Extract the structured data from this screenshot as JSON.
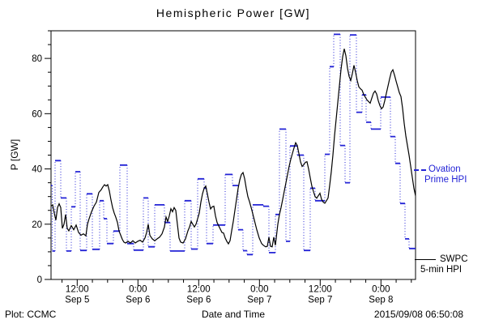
{
  "chart_data": {
    "type": "line",
    "title": "Hemispheric Power [GW]",
    "xlabel": "Date and Time",
    "ylabel": "P [GW]",
    "footer_left": "Plot: CCMC",
    "footer_right": "2015/09/08 06:50:08",
    "x_unit": "hours since 2015-09-05 06:50 UT (window ends 2015-09-08 06:50)",
    "x_range": [
      0,
      72
    ],
    "y_range": [
      0,
      90
    ],
    "y_major_ticks": [
      0,
      20,
      40,
      60,
      80
    ],
    "y_minor_step": 5,
    "x_major_ticks": [
      {
        "h": 5.17,
        "time": "12:00",
        "date": "Sep 5"
      },
      {
        "h": 17.17,
        "time": "0:00",
        "date": "Sep 6"
      },
      {
        "h": 29.17,
        "time": "12:00",
        "date": "Sep 6"
      },
      {
        "h": 41.17,
        "time": "0:00",
        "date": "Sep 7"
      },
      {
        "h": 53.17,
        "time": "12:00",
        "date": "Sep 7"
      },
      {
        "h": 65.17,
        "time": "0:00",
        "date": "Sep 8"
      }
    ],
    "x_minor": {
      "first": 2.17,
      "step": 3
    },
    "grid": false,
    "legend_position": "right-outside",
    "series": [
      {
        "name": "Ovation Prime HPI",
        "legend_line1": "Ovation",
        "legend_line2": "Prime HPI",
        "color": "#2323d6",
        "style": "steps: solid horizontal segments, dotted vertical connectors",
        "steps_h_gw": [
          [
            0,
            34
          ],
          [
            0.24,
            10.3
          ],
          [
            0.8,
            43
          ],
          [
            1.92,
            29.5
          ],
          [
            3.04,
            10.3
          ],
          [
            4,
            26.3
          ],
          [
            4.8,
            39
          ],
          [
            5.76,
            10.5
          ],
          [
            7.04,
            31
          ],
          [
            8.16,
            10.9
          ],
          [
            9.6,
            28.5
          ],
          [
            10.4,
            22
          ],
          [
            11.04,
            13
          ],
          [
            12.32,
            17.5
          ],
          [
            13.6,
            41.4
          ],
          [
            15.04,
            13
          ],
          [
            16.32,
            10.6
          ],
          [
            18.24,
            29.5
          ],
          [
            19.2,
            11.8
          ],
          [
            20.48,
            27
          ],
          [
            22.4,
            20.6
          ],
          [
            23.52,
            10.3
          ],
          [
            26.4,
            28.5
          ],
          [
            27.68,
            11
          ],
          [
            28.96,
            36.4
          ],
          [
            30.24,
            33
          ],
          [
            30.72,
            13
          ],
          [
            32,
            19.7
          ],
          [
            34.4,
            38
          ],
          [
            35.84,
            34
          ],
          [
            36.96,
            18
          ],
          [
            37.92,
            10.4
          ],
          [
            38.72,
            9
          ],
          [
            39.84,
            27
          ],
          [
            41.92,
            26.5
          ],
          [
            43.04,
            9.7
          ],
          [
            44.32,
            23.5
          ],
          [
            45.12,
            54.4
          ],
          [
            46.4,
            13.8
          ],
          [
            47.2,
            48.3
          ],
          [
            48.64,
            45
          ],
          [
            49.92,
            10.5
          ],
          [
            51.2,
            33
          ],
          [
            52.16,
            28.5
          ],
          [
            54.08,
            45.3
          ],
          [
            55.04,
            77
          ],
          [
            55.84,
            88.7
          ],
          [
            57.12,
            48.5
          ],
          [
            58.08,
            35
          ],
          [
            59.04,
            88.5
          ],
          [
            60.32,
            60.5
          ],
          [
            61.44,
            66.8
          ],
          [
            62.24,
            56.9
          ],
          [
            63.2,
            54.4
          ],
          [
            65.12,
            66
          ],
          [
            67.04,
            51.7
          ],
          [
            68,
            42
          ],
          [
            68.96,
            27.5
          ],
          [
            69.92,
            14.7
          ],
          [
            70.72,
            11.2
          ]
        ]
      },
      {
        "name": "SWPC 5-min HPI",
        "legend_line1": "SWPC",
        "legend_line2": "5-min HPI",
        "color": "#000000",
        "style": "solid line",
        "points_h_gw": [
          [
            0,
            26.5
          ],
          [
            0.32,
            27
          ],
          [
            0.64,
            24
          ],
          [
            0.96,
            21.5
          ],
          [
            1.28,
            26
          ],
          [
            1.6,
            27.4
          ],
          [
            1.92,
            26
          ],
          [
            2.24,
            18.5
          ],
          [
            2.56,
            20
          ],
          [
            2.88,
            23.5
          ],
          [
            3.2,
            18.5
          ],
          [
            3.52,
            17.6
          ],
          [
            4,
            19.5
          ],
          [
            4.48,
            18
          ],
          [
            4.96,
            19.7
          ],
          [
            5.44,
            17
          ],
          [
            5.92,
            16
          ],
          [
            6.4,
            16.5
          ],
          [
            6.88,
            15.8
          ],
          [
            7.2,
            20
          ],
          [
            7.52,
            22
          ],
          [
            8,
            24.5
          ],
          [
            8.48,
            26.5
          ],
          [
            8.96,
            28
          ],
          [
            9.44,
            31.5
          ],
          [
            9.92,
            32.5
          ],
          [
            10.24,
            33.5
          ],
          [
            10.56,
            34.3
          ],
          [
            10.88,
            33.8
          ],
          [
            11.2,
            34.3
          ],
          [
            11.52,
            32
          ],
          [
            11.84,
            28.8
          ],
          [
            12.16,
            26
          ],
          [
            12.48,
            24
          ],
          [
            12.8,
            22.5
          ],
          [
            13.12,
            20.6
          ],
          [
            13.44,
            17.5
          ],
          [
            13.76,
            16
          ],
          [
            14.08,
            14.5
          ],
          [
            14.4,
            13.5
          ],
          [
            14.72,
            13.2
          ],
          [
            15.2,
            13.8
          ],
          [
            15.68,
            13.2
          ],
          [
            16.16,
            14
          ],
          [
            16.64,
            13.2
          ],
          [
            17.12,
            13.8
          ],
          [
            17.6,
            14.2
          ],
          [
            18.08,
            13.5
          ],
          [
            18.56,
            15
          ],
          [
            18.88,
            17
          ],
          [
            19.2,
            20
          ],
          [
            19.52,
            16
          ],
          [
            20,
            14.7
          ],
          [
            20.48,
            14
          ],
          [
            20.96,
            14.7
          ],
          [
            21.44,
            15.3
          ],
          [
            21.92,
            16.5
          ],
          [
            22.4,
            19
          ],
          [
            22.72,
            22.6
          ],
          [
            23.04,
            21
          ],
          [
            23.36,
            23
          ],
          [
            23.68,
            25.6
          ],
          [
            24,
            24.5
          ],
          [
            24.32,
            26
          ],
          [
            24.64,
            25
          ],
          [
            24.96,
            20
          ],
          [
            25.28,
            15
          ],
          [
            25.6,
            13.5
          ],
          [
            26.08,
            13.2
          ],
          [
            26.56,
            14.7
          ],
          [
            27.04,
            17.6
          ],
          [
            27.36,
            19
          ],
          [
            27.68,
            21
          ],
          [
            28,
            20
          ],
          [
            28.32,
            19
          ],
          [
            28.64,
            20
          ],
          [
            28.96,
            22
          ],
          [
            29.28,
            24
          ],
          [
            29.6,
            28
          ],
          [
            29.92,
            31
          ],
          [
            30.24,
            33
          ],
          [
            30.56,
            33.8
          ],
          [
            30.88,
            31
          ],
          [
            31.2,
            28
          ],
          [
            31.52,
            25.5
          ],
          [
            31.84,
            26.3
          ],
          [
            32.16,
            26.5
          ],
          [
            32.48,
            23
          ],
          [
            32.8,
            20.6
          ],
          [
            33.12,
            19.4
          ],
          [
            33.44,
            18.2
          ],
          [
            33.76,
            17
          ],
          [
            34.08,
            16.8
          ],
          [
            34.4,
            15
          ],
          [
            34.72,
            13.8
          ],
          [
            35.04,
            12.9
          ],
          [
            35.36,
            14
          ],
          [
            35.68,
            17.6
          ],
          [
            36,
            21
          ],
          [
            36.32,
            25
          ],
          [
            36.64,
            29
          ],
          [
            36.96,
            33
          ],
          [
            37.28,
            36
          ],
          [
            37.6,
            38
          ],
          [
            37.92,
            38.7
          ],
          [
            38.24,
            36.5
          ],
          [
            38.56,
            33
          ],
          [
            38.88,
            30
          ],
          [
            39.2,
            28.2
          ],
          [
            39.68,
            25
          ],
          [
            40.16,
            21.5
          ],
          [
            40.64,
            18
          ],
          [
            41.12,
            15
          ],
          [
            41.6,
            13
          ],
          [
            41.92,
            12.4
          ],
          [
            42.4,
            11.8
          ],
          [
            42.72,
            12
          ],
          [
            43.04,
            15.3
          ],
          [
            43.36,
            12
          ],
          [
            43.68,
            11.8
          ],
          [
            44,
            15.3
          ],
          [
            44.32,
            12.4
          ],
          [
            44.8,
            20
          ],
          [
            45.12,
            23.5
          ],
          [
            45.44,
            26
          ],
          [
            45.76,
            29
          ],
          [
            46.08,
            32
          ],
          [
            46.4,
            35
          ],
          [
            46.72,
            38
          ],
          [
            47.04,
            41
          ],
          [
            47.36,
            43.5
          ],
          [
            47.68,
            45.6
          ],
          [
            48,
            47.6
          ],
          [
            48.32,
            49.5
          ],
          [
            48.64,
            48.5
          ],
          [
            48.96,
            45.6
          ],
          [
            49.28,
            42.6
          ],
          [
            49.6,
            40.9
          ],
          [
            49.92,
            41.5
          ],
          [
            50.24,
            42.4
          ],
          [
            50.56,
            42.6
          ],
          [
            50.88,
            40
          ],
          [
            51.2,
            36.8
          ],
          [
            51.52,
            33.8
          ],
          [
            51.84,
            31.8
          ],
          [
            52.16,
            30
          ],
          [
            52.48,
            29.4
          ],
          [
            52.8,
            30.3
          ],
          [
            53.12,
            31.2
          ],
          [
            53.44,
            29
          ],
          [
            53.76,
            28
          ],
          [
            54.08,
            27.6
          ],
          [
            54.4,
            28.5
          ],
          [
            54.72,
            29.5
          ],
          [
            55.04,
            34
          ],
          [
            55.36,
            39
          ],
          [
            55.68,
            45
          ],
          [
            56,
            52
          ],
          [
            56.32,
            58
          ],
          [
            56.64,
            64
          ],
          [
            56.96,
            70
          ],
          [
            57.28,
            76
          ],
          [
            57.6,
            80.5
          ],
          [
            57.92,
            83.5
          ],
          [
            58.24,
            81
          ],
          [
            58.56,
            76.5
          ],
          [
            58.88,
            73.5
          ],
          [
            59.2,
            72
          ],
          [
            59.52,
            74.5
          ],
          [
            59.84,
            77.5
          ],
          [
            60.16,
            75
          ],
          [
            60.48,
            72
          ],
          [
            60.8,
            69.7
          ],
          [
            61.12,
            69
          ],
          [
            61.44,
            68.5
          ],
          [
            61.76,
            67
          ],
          [
            62.08,
            66
          ],
          [
            62.4,
            65
          ],
          [
            62.72,
            64.4
          ],
          [
            63.04,
            63.8
          ],
          [
            63.36,
            65.6
          ],
          [
            63.68,
            67.4
          ],
          [
            64,
            68.2
          ],
          [
            64.32,
            67.1
          ],
          [
            64.64,
            64.7
          ],
          [
            64.96,
            62.9
          ],
          [
            65.28,
            61.8
          ],
          [
            65.6,
            62.4
          ],
          [
            65.92,
            64.7
          ],
          [
            66.24,
            67.4
          ],
          [
            66.56,
            70
          ],
          [
            66.88,
            72.6
          ],
          [
            67.2,
            75
          ],
          [
            67.52,
            75.9
          ],
          [
            67.84,
            74
          ],
          [
            68.16,
            71.8
          ],
          [
            68.48,
            69.7
          ],
          [
            68.8,
            67.6
          ],
          [
            69.12,
            66.2
          ],
          [
            69.44,
            62
          ],
          [
            69.76,
            56.5
          ],
          [
            70.08,
            52
          ],
          [
            70.4,
            48.5
          ],
          [
            70.72,
            45
          ],
          [
            71.04,
            41
          ],
          [
            71.36,
            37
          ],
          [
            71.68,
            33
          ],
          [
            72,
            30.3
          ]
        ]
      }
    ]
  }
}
